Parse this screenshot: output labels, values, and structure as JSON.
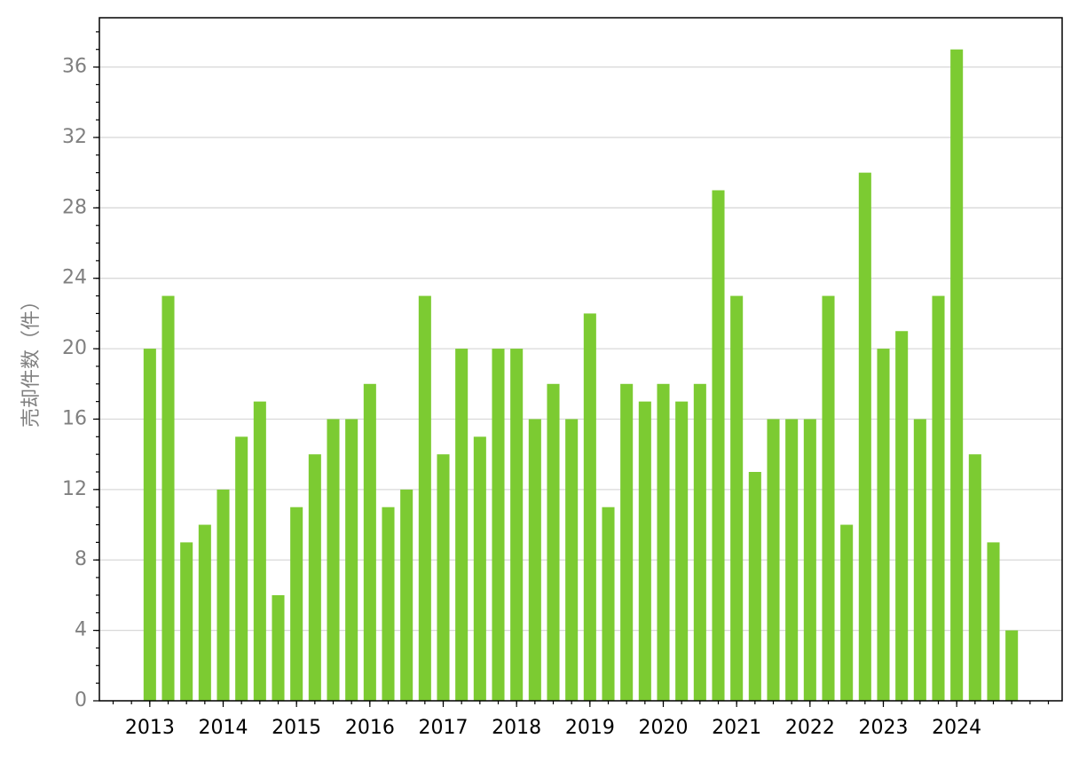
{
  "chart_data": {
    "type": "bar",
    "y_label": "売却件数（件）",
    "categories": [
      "2013",
      null,
      null,
      null,
      "2014",
      null,
      null,
      null,
      "2015",
      null,
      null,
      null,
      "2016",
      null,
      null,
      null,
      "2017",
      null,
      null,
      null,
      "2018",
      null,
      null,
      null,
      "2019",
      null,
      null,
      null,
      "2020",
      null,
      null,
      null,
      "2021",
      null,
      null,
      null,
      "2022",
      null,
      null,
      null,
      "2023",
      null,
      null,
      null,
      "2024",
      null,
      null,
      null
    ],
    "values": [
      20,
      23,
      9,
      10,
      12,
      15,
      17,
      6,
      11,
      14,
      16,
      16,
      18,
      11,
      12,
      23,
      14,
      20,
      15,
      20,
      20,
      16,
      18,
      16,
      22,
      11,
      18,
      17,
      18,
      17,
      18,
      29,
      23,
      13,
      16,
      16,
      16,
      23,
      10,
      30,
      20,
      21,
      16,
      23,
      37,
      14,
      9,
      4
    ],
    "color": "#7ccb32",
    "ylim": [
      0,
      38.8
    ],
    "yticks": [
      0,
      4,
      8,
      12,
      16,
      20,
      24,
      28,
      32,
      36
    ],
    "grid": true
  }
}
